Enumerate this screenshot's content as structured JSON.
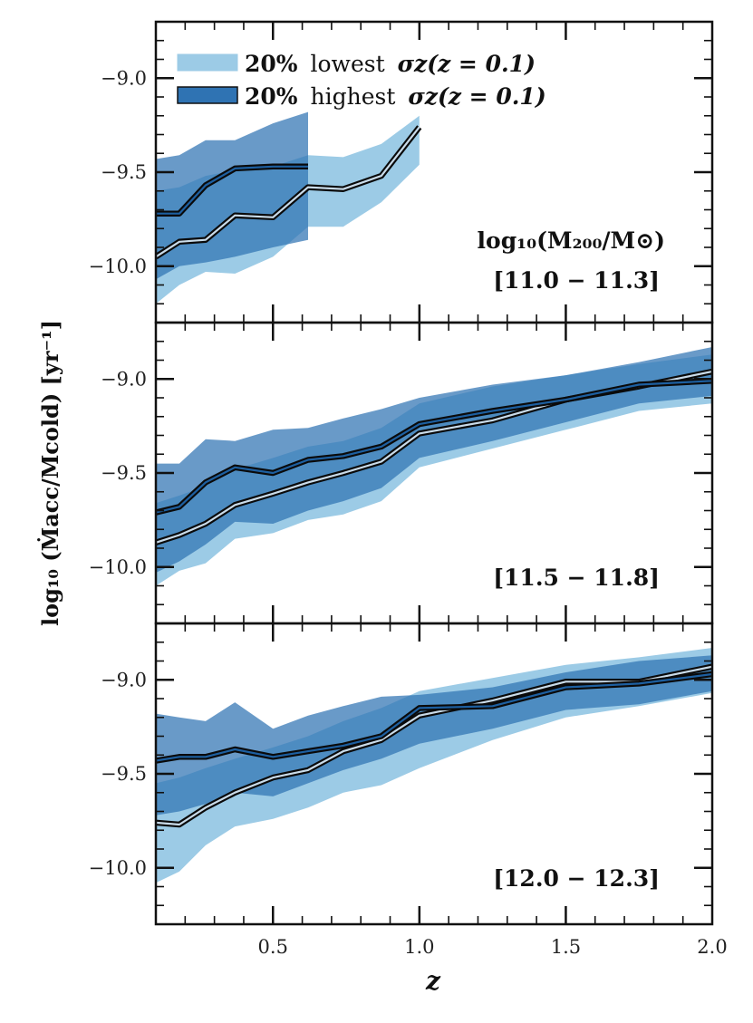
{
  "chart_data": {
    "type": "area",
    "xlabel": "z",
    "ylabel": "log₁₀ (Ṁacc/Mcold) [yr⁻¹]",
    "xlim": [
      0.1,
      2.0
    ],
    "ylim": [
      -10.3,
      -8.7
    ],
    "x_ticks": [
      0.5,
      1.0,
      1.5,
      2.0
    ],
    "x_tick_labels": [
      "0.5",
      "1.0",
      "1.5",
      "2.0"
    ],
    "y_ticks": [
      -9.0,
      -9.5,
      -10.0
    ],
    "y_tick_labels": [
      "−9.0",
      "−9.5",
      "−10.0"
    ],
    "colors": {
      "low": "#9ccbe6",
      "high": "#2f73b3",
      "line": "#0a0a0a",
      "line_inner_low": "#c9dbe9",
      "line_inner_high": "#1d5fa0"
    },
    "legend": [
      {
        "key": "low",
        "pct": "20%",
        "text": "lowest",
        "sigma": "σz(z = 0.1)"
      },
      {
        "key": "high",
        "pct": "20%",
        "text": "highest",
        "sigma": "σz(z = 0.1)"
      }
    ],
    "mass_label_heading": "log₁₀(M₂₀₀/M⊙)",
    "panels": [
      {
        "label": "[11.0 − 11.3]",
        "series": [
          {
            "key": "low",
            "x": [
              0.1,
              0.18,
              0.27,
              0.37,
              0.5,
              0.62,
              0.74,
              0.87,
              1.0
            ],
            "median": [
              -9.95,
              -9.87,
              -9.86,
              -9.73,
              -9.74,
              -9.58,
              -9.59,
              -9.52,
              -9.26
            ],
            "p_low": [
              -10.2,
              -10.1,
              -10.03,
              -10.04,
              -9.95,
              -9.79,
              -9.79,
              -9.66,
              -9.46
            ],
            "p_high": [
              -9.6,
              -9.58,
              -9.52,
              -9.49,
              -9.47,
              -9.41,
              -9.42,
              -9.35,
              -9.2
            ]
          },
          {
            "key": "high",
            "x": [
              0.1,
              0.18,
              0.27,
              0.37,
              0.5,
              0.62
            ],
            "median": [
              -9.72,
              -9.72,
              -9.57,
              -9.48,
              -9.47,
              -9.47
            ],
            "p_low": [
              -10.07,
              -10.0,
              -9.98,
              -9.95,
              -9.9,
              -9.86
            ],
            "p_high": [
              -9.43,
              -9.41,
              -9.33,
              -9.33,
              -9.24,
              -9.18
            ]
          }
        ]
      },
      {
        "label": "[11.5 − 11.8]",
        "series": [
          {
            "key": "low",
            "x": [
              0.1,
              0.18,
              0.27,
              0.37,
              0.5,
              0.62,
              0.74,
              0.87,
              1.0,
              1.25,
              1.5,
              1.75,
              2.0
            ],
            "median": [
              -9.87,
              -9.83,
              -9.77,
              -9.67,
              -9.61,
              -9.55,
              -9.5,
              -9.44,
              -9.29,
              -9.22,
              -9.11,
              -9.04,
              -8.96
            ],
            "p_low": [
              -10.1,
              -10.02,
              -9.98,
              -9.85,
              -9.82,
              -9.75,
              -9.72,
              -9.65,
              -9.47,
              -9.37,
              -9.27,
              -9.17,
              -9.13
            ],
            "p_high": [
              -9.66,
              -9.62,
              -9.57,
              -9.48,
              -9.42,
              -9.36,
              -9.33,
              -9.26,
              -9.13,
              -9.04,
              -8.98,
              -8.92,
              -8.87
            ]
          },
          {
            "key": "high",
            "x": [
              0.1,
              0.18,
              0.27,
              0.37,
              0.5,
              0.62,
              0.74,
              0.87,
              1.0,
              1.25,
              1.5,
              1.75,
              2.0
            ],
            "median": [
              -9.71,
              -9.68,
              -9.55,
              -9.47,
              -9.5,
              -9.43,
              -9.41,
              -9.36,
              -9.24,
              -9.17,
              -9.11,
              -9.03,
              -9.01
            ],
            "p_low": [
              -10.03,
              -9.97,
              -9.88,
              -9.76,
              -9.77,
              -9.7,
              -9.65,
              -9.58,
              -9.42,
              -9.33,
              -9.23,
              -9.13,
              -9.09
            ],
            "p_high": [
              -9.45,
              -9.45,
              -9.32,
              -9.33,
              -9.27,
              -9.26,
              -9.21,
              -9.16,
              -9.1,
              -9.03,
              -8.98,
              -8.91,
              -8.83
            ]
          }
        ]
      },
      {
        "label": "[12.0 − 12.3]",
        "series": [
          {
            "key": "low",
            "x": [
              0.1,
              0.18,
              0.27,
              0.37,
              0.5,
              0.62,
              0.74,
              0.87,
              1.0,
              1.25,
              1.5,
              1.75,
              2.0
            ],
            "median": [
              -9.76,
              -9.77,
              -9.68,
              -9.6,
              -9.52,
              -9.48,
              -9.38,
              -9.32,
              -9.19,
              -9.11,
              -9.01,
              -9.01,
              -8.93
            ],
            "p_low": [
              -10.08,
              -10.02,
              -9.88,
              -9.78,
              -9.74,
              -9.68,
              -9.6,
              -9.56,
              -9.47,
              -9.32,
              -9.2,
              -9.14,
              -9.07
            ],
            "p_high": [
              -9.55,
              -9.52,
              -9.47,
              -9.42,
              -9.36,
              -9.3,
              -9.22,
              -9.15,
              -9.06,
              -8.99,
              -8.92,
              -8.88,
              -8.83
            ]
          },
          {
            "key": "high",
            "x": [
              0.1,
              0.18,
              0.27,
              0.37,
              0.5,
              0.62,
              0.74,
              0.87,
              1.0,
              1.25,
              1.5,
              1.75,
              2.0
            ],
            "median": [
              -9.43,
              -9.41,
              -9.41,
              -9.37,
              -9.41,
              -9.38,
              -9.35,
              -9.3,
              -9.15,
              -9.14,
              -9.04,
              -9.02,
              -8.97
            ],
            "p_low": [
              -9.72,
              -9.7,
              -9.66,
              -9.6,
              -9.62,
              -9.55,
              -9.48,
              -9.42,
              -9.34,
              -9.26,
              -9.16,
              -9.13,
              -9.06
            ],
            "p_high": [
              -9.18,
              -9.2,
              -9.22,
              -9.12,
              -9.26,
              -9.19,
              -9.14,
              -9.09,
              -9.08,
              -9.04,
              -8.96,
              -8.9,
              -8.87
            ]
          }
        ]
      }
    ]
  }
}
